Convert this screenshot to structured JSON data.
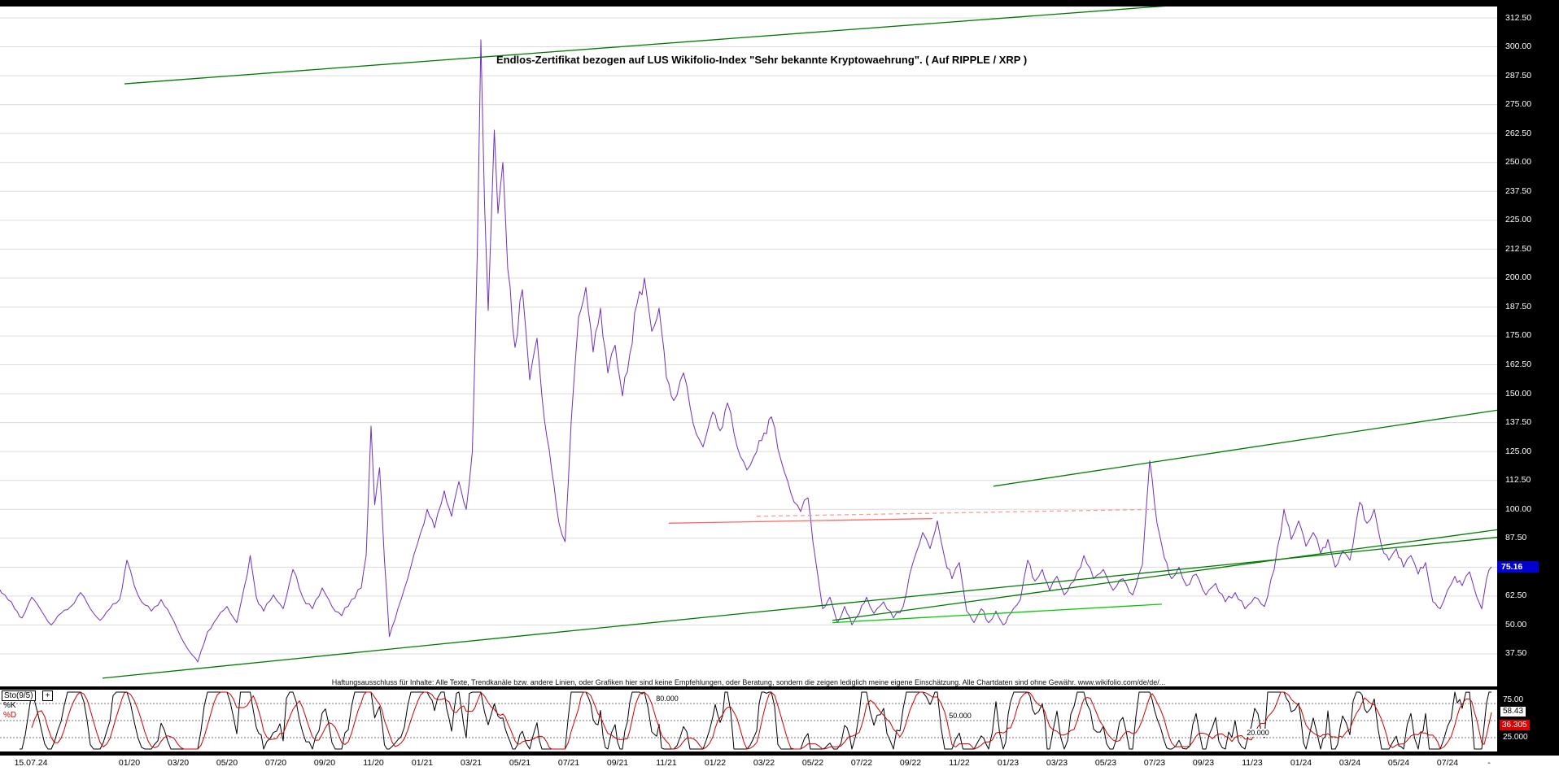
{
  "window": {
    "bg": "#000000"
  },
  "title": "Endlos-Zertifikat bezogen auf LUS Wikifolio-Index \"Sehr bekannte Kryptowaehrung\". ( Auf RIPPLE / XRP )",
  "disclaimer": "Haftungsausschluss für Inhalte: Alle Texte, Trendkanäle bzw. andere Linien, oder Grafiken hier sind keine Empfehlungen, oder Beratung, sondern die zeigen lediglich meine eigene Einschätzung. Alle Chartdaten sind ohne Gewähr. www.wikifolio.com/de/de/...",
  "price_axis": {
    "labels": [
      "312.50",
      "300.00",
      "287.50",
      "275.00",
      "262.50",
      "250.00",
      "237.50",
      "225.00",
      "212.50",
      "200.00",
      "187.50",
      "175.00",
      "162.50",
      "150.00",
      "137.50",
      "125.00",
      "112.50",
      "100.00",
      "87.50",
      "62.50",
      "50.00",
      "37.50"
    ],
    "current_value": "75.16",
    "current_bg": "#0000d0"
  },
  "time_axis": {
    "start_label": "15.07.24",
    "labels": [
      "01/20",
      "03/20",
      "05/20",
      "07/20",
      "09/20",
      "11/20",
      "01/21",
      "03/21",
      "05/21",
      "07/21",
      "09/21",
      "11/21",
      "01/22",
      "03/22",
      "05/22",
      "07/22",
      "09/22",
      "11/22",
      "01/23",
      "03/23",
      "05/23",
      "07/23",
      "09/23",
      "11/23",
      "01/24",
      "03/24",
      "05/24",
      "07/24"
    ],
    "tail": "-"
  },
  "sto_panel": {
    "name": "Sto(9/5)",
    "plus_label": "+",
    "k_label": "%K",
    "d_label": "%D",
    "level_labels": [
      "80.000",
      "50.000",
      "20.000"
    ],
    "scale": {
      "top": "75.00",
      "k_value": "58.43",
      "d_value": "36.305",
      "bottom": "25.000"
    },
    "colors": {
      "k": "#000000",
      "d": "#cc0000"
    }
  },
  "chart_data": {
    "type": "line",
    "title": "Endlos-Zertifikat bezogen auf LUS Wikifolio-Index \"Sehr bekannte Kryptowaehrung\". ( Auf RIPPLE / XRP )",
    "x_axis": {
      "unit": "months since 15.07.2019",
      "tick_labels": [
        "01/20",
        "03/20",
        "05/20",
        "07/20",
        "09/20",
        "11/20",
        "01/21",
        "03/21",
        "05/21",
        "07/21",
        "09/21",
        "11/21",
        "01/22",
        "03/22",
        "05/22",
        "07/22",
        "09/22",
        "11/22",
        "01/23",
        "03/23",
        "05/23",
        "07/23",
        "09/23",
        "11/23",
        "01/24",
        "03/24",
        "05/24",
        "07/24"
      ]
    },
    "y_axis": {
      "min": 25,
      "max": 317,
      "tick_step": 12.5,
      "grid": true
    },
    "last_price": 75.16,
    "series": [
      {
        "name": "Endlos-Zertifikat LUS Wikifolio-Index (RIPPLE/XRP)",
        "color": "#7030c0",
        "points": [
          [
            0,
            68
          ],
          [
            0.4,
            63
          ],
          [
            0.8,
            57
          ],
          [
            1.1,
            53
          ],
          [
            1.5,
            62
          ],
          [
            1.9,
            56
          ],
          [
            2.3,
            50
          ],
          [
            2.7,
            55
          ],
          [
            3.1,
            58
          ],
          [
            3.5,
            64
          ],
          [
            3.9,
            57
          ],
          [
            4.3,
            52
          ],
          [
            4.7,
            57
          ],
          [
            5.1,
            61
          ],
          [
            5.4,
            78
          ],
          [
            5.7,
            67
          ],
          [
            6,
            60
          ],
          [
            6.4,
            56
          ],
          [
            6.8,
            61
          ],
          [
            7.2,
            54
          ],
          [
            7.6,
            45
          ],
          [
            8,
            38
          ],
          [
            8.3,
            34
          ],
          [
            8.7,
            47
          ],
          [
            9.1,
            53
          ],
          [
            9.5,
            58
          ],
          [
            9.9,
            51
          ],
          [
            10.2,
            66
          ],
          [
            10.45,
            80
          ],
          [
            10.7,
            62
          ],
          [
            11,
            56
          ],
          [
            11.4,
            63
          ],
          [
            11.8,
            57
          ],
          [
            12.2,
            74
          ],
          [
            12.6,
            62
          ],
          [
            13,
            57
          ],
          [
            13.4,
            66
          ],
          [
            13.8,
            58
          ],
          [
            14.2,
            54
          ],
          [
            14.6,
            61
          ],
          [
            15,
            66
          ],
          [
            15.2,
            80
          ],
          [
            15.4,
            136
          ],
          [
            15.55,
            102
          ],
          [
            15.75,
            118
          ],
          [
            15.95,
            78
          ],
          [
            16.15,
            45
          ],
          [
            16.5,
            57
          ],
          [
            16.9,
            70
          ],
          [
            17.3,
            85
          ],
          [
            17.7,
            100
          ],
          [
            18,
            92
          ],
          [
            18.4,
            108
          ],
          [
            18.7,
            97
          ],
          [
            19,
            112
          ],
          [
            19.3,
            100
          ],
          [
            19.55,
            125
          ],
          [
            19.75,
            210
          ],
          [
            19.9,
            303
          ],
          [
            20.05,
            232
          ],
          [
            20.2,
            186
          ],
          [
            20.45,
            264
          ],
          [
            20.6,
            228
          ],
          [
            20.8,
            250
          ],
          [
            21,
            204
          ],
          [
            21.3,
            170
          ],
          [
            21.6,
            195
          ],
          [
            21.9,
            156
          ],
          [
            22.2,
            174
          ],
          [
            22.5,
            139
          ],
          [
            22.8,
            117
          ],
          [
            23.1,
            94
          ],
          [
            23.35,
            86
          ],
          [
            23.6,
            138
          ],
          [
            23.9,
            183
          ],
          [
            24.2,
            196
          ],
          [
            24.5,
            168
          ],
          [
            24.8,
            187
          ],
          [
            25.1,
            159
          ],
          [
            25.4,
            171
          ],
          [
            25.7,
            149
          ],
          [
            26,
            167
          ],
          [
            26.3,
            189
          ],
          [
            26.6,
            200
          ],
          [
            26.9,
            177
          ],
          [
            27.2,
            187
          ],
          [
            27.5,
            157
          ],
          [
            27.8,
            147
          ],
          [
            28.2,
            159
          ],
          [
            28.6,
            137
          ],
          [
            29,
            127
          ],
          [
            29.4,
            142
          ],
          [
            29.7,
            134
          ],
          [
            30,
            146
          ],
          [
            30.4,
            127
          ],
          [
            30.8,
            117
          ],
          [
            31.2,
            125
          ],
          [
            31.5,
            133
          ],
          [
            31.8,
            140
          ],
          [
            32.2,
            121
          ],
          [
            32.6,
            107
          ],
          [
            33,
            99
          ],
          [
            33.3,
            105
          ],
          [
            33.6,
            79
          ],
          [
            33.9,
            57
          ],
          [
            34.2,
            62
          ],
          [
            34.5,
            51
          ],
          [
            34.8,
            58
          ],
          [
            35.1,
            50
          ],
          [
            35.4,
            55
          ],
          [
            35.7,
            62
          ],
          [
            36,
            55
          ],
          [
            36.4,
            60
          ],
          [
            36.8,
            53
          ],
          [
            37.2,
            58
          ],
          [
            37.6,
            77
          ],
          [
            38,
            90
          ],
          [
            38.3,
            83
          ],
          [
            38.6,
            95
          ],
          [
            38.9,
            79
          ],
          [
            39.2,
            70
          ],
          [
            39.5,
            77
          ],
          [
            39.8,
            56
          ],
          [
            40.1,
            51
          ],
          [
            40.4,
            57
          ],
          [
            40.7,
            51
          ],
          [
            41,
            56
          ],
          [
            41.3,
            50
          ],
          [
            41.6,
            55
          ],
          [
            42,
            61
          ],
          [
            42.3,
            78
          ],
          [
            42.6,
            69
          ],
          [
            42.9,
            74
          ],
          [
            43.2,
            65
          ],
          [
            43.5,
            71
          ],
          [
            43.8,
            63
          ],
          [
            44.2,
            69
          ],
          [
            44.6,
            80
          ],
          [
            45,
            70
          ],
          [
            45.4,
            74
          ],
          [
            45.8,
            65
          ],
          [
            46.2,
            70
          ],
          [
            46.6,
            63
          ],
          [
            47,
            76
          ],
          [
            47.3,
            121
          ],
          [
            47.6,
            94
          ],
          [
            47.9,
            79
          ],
          [
            48.2,
            70
          ],
          [
            48.5,
            75
          ],
          [
            48.8,
            67
          ],
          [
            49.2,
            72
          ],
          [
            49.6,
            63
          ],
          [
            50,
            68
          ],
          [
            50.4,
            60
          ],
          [
            50.8,
            64
          ],
          [
            51.2,
            57
          ],
          [
            51.6,
            62
          ],
          [
            52,
            58
          ],
          [
            52.4,
            74
          ],
          [
            52.8,
            100
          ],
          [
            53.1,
            87
          ],
          [
            53.4,
            95
          ],
          [
            53.7,
            84
          ],
          [
            54,
            90
          ],
          [
            54.3,
            81
          ],
          [
            54.6,
            87
          ],
          [
            54.9,
            75
          ],
          [
            55.2,
            82
          ],
          [
            55.5,
            78
          ],
          [
            55.9,
            103
          ],
          [
            56.2,
            94
          ],
          [
            56.5,
            100
          ],
          [
            56.8,
            84
          ],
          [
            57.1,
            78
          ],
          [
            57.4,
            83
          ],
          [
            57.7,
            75
          ],
          [
            58,
            80
          ],
          [
            58.3,
            72
          ],
          [
            58.6,
            77
          ],
          [
            58.9,
            60
          ],
          [
            59.2,
            57
          ],
          [
            59.5,
            65
          ],
          [
            59.8,
            71
          ],
          [
            60.1,
            67
          ],
          [
            60.4,
            73
          ],
          [
            60.7,
            62
          ],
          [
            60.9,
            57
          ],
          [
            61.1,
            70
          ],
          [
            61.3,
            75.16
          ]
        ]
      }
    ],
    "overlay_lines": [
      {
        "name": "trend-upper-channel",
        "color": "#007a00",
        "from": [
          5.3,
          284
        ],
        "to": [
          52.2,
          321
        ],
        "dash": ""
      },
      {
        "name": "trend-mid-right",
        "color": "#007a00",
        "from": [
          40.9,
          110
        ],
        "to": [
          63.5,
          146
        ],
        "dash": ""
      },
      {
        "name": "trend-support-long",
        "color": "#007a00",
        "from": [
          4.4,
          27
        ],
        "to": [
          63.5,
          90
        ],
        "dash": ""
      },
      {
        "name": "trend-support-right",
        "color": "#007a00",
        "from": [
          34.3,
          52
        ],
        "to": [
          63.5,
          94
        ],
        "dash": ""
      },
      {
        "name": "trend-support-bright",
        "color": "#00cc00",
        "from": [
          34.3,
          51
        ],
        "to": [
          47.8,
          59
        ],
        "dash": ""
      },
      {
        "name": "resistance-solid-red",
        "color": "#ff6666",
        "from": [
          27.6,
          94
        ],
        "to": [
          38.4,
          96
        ],
        "dash": ""
      },
      {
        "name": "resistance-dashed-pink",
        "color": "#ff9999",
        "from": [
          31.2,
          97
        ],
        "to": [
          47.5,
          100
        ],
        "dash": "5,4"
      }
    ],
    "indicator": {
      "type": "stochastic",
      "label": "Sto(9/5)",
      "k_period": 9,
      "d_period": 5,
      "levels": [
        80,
        50,
        20
      ],
      "k_last": 58.43,
      "d_last": 36.305
    }
  }
}
